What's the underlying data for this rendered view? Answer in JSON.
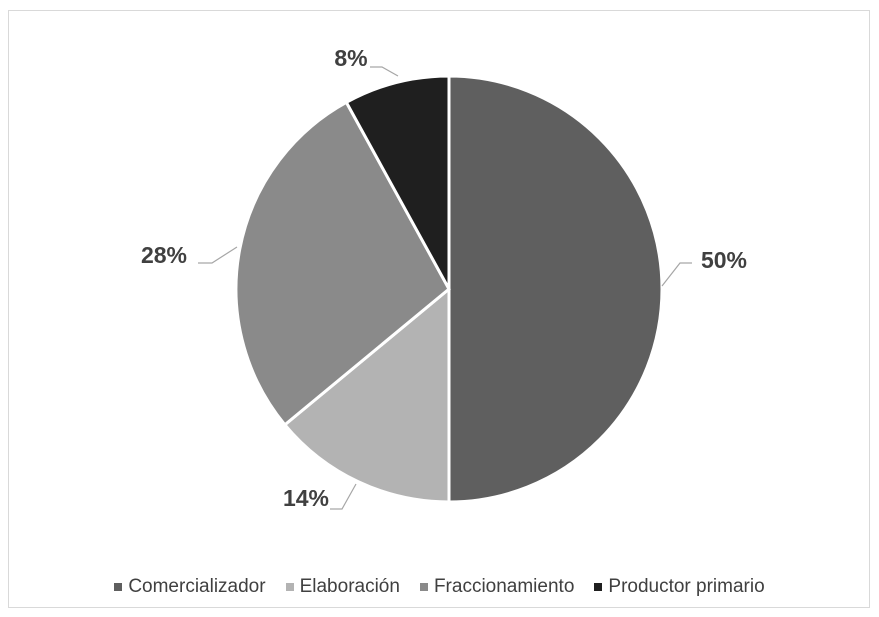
{
  "chart_data": {
    "type": "pie",
    "title": "",
    "slices": [
      {
        "label": "Comercializador",
        "value": 50,
        "display": "50%",
        "color": "#5f5f5f"
      },
      {
        "label": "Elaboración",
        "value": 14,
        "display": "14%",
        "color": "#b3b3b3"
      },
      {
        "label": "Fraccionamiento",
        "value": 28,
        "display": "28%",
        "color": "#8a8a8a"
      },
      {
        "label": "Productor primario",
        "value": 8,
        "display": "8%",
        "color": "#1f1f1f"
      }
    ],
    "legend_position": "bottom",
    "data_labels": "outside with leader lines"
  }
}
